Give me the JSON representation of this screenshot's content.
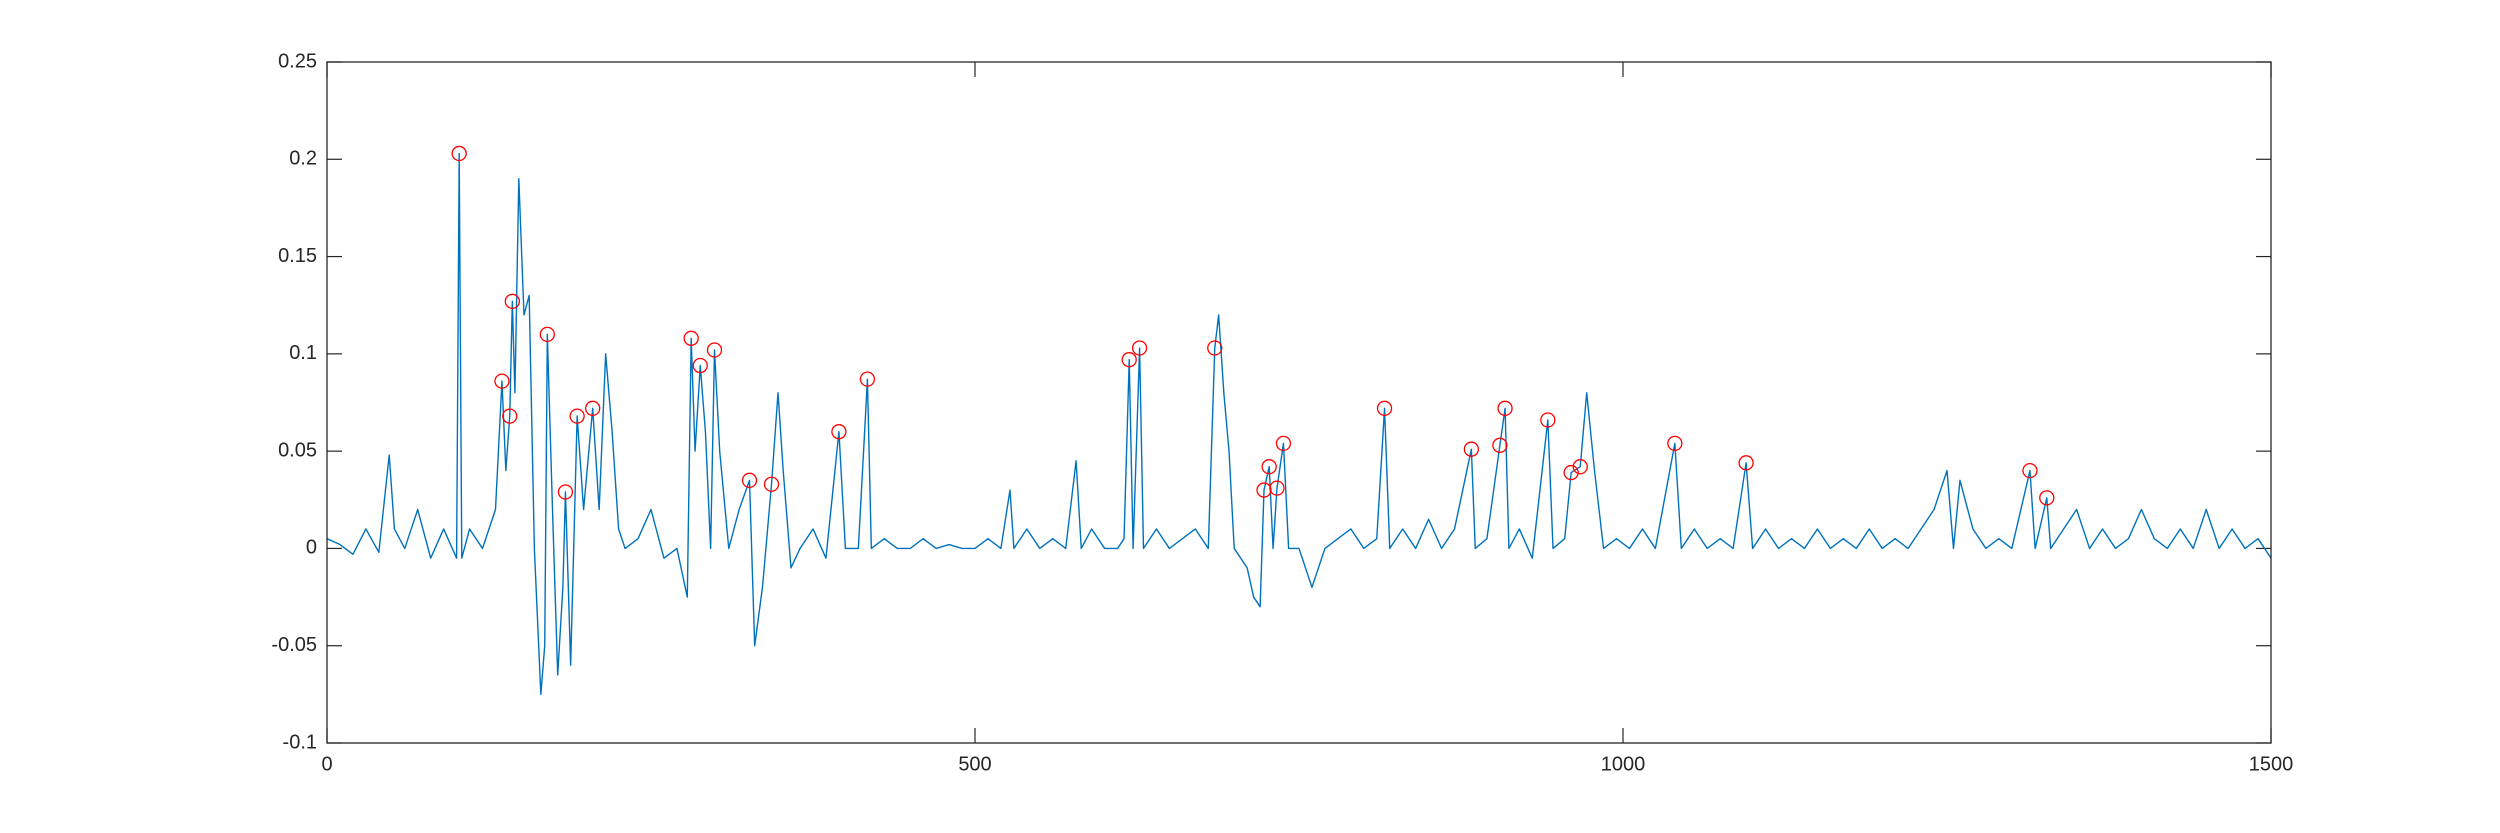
{
  "chart_data": {
    "type": "line",
    "xlim": [
      0,
      1500
    ],
    "xticks": [
      0,
      500,
      1000,
      1500
    ],
    "ylim": [
      -0.1,
      0.25
    ],
    "yticks": [
      -0.1,
      -0.05,
      0,
      0.05,
      0.1,
      0.15,
      0.2,
      0.25
    ],
    "grid": false,
    "series": [
      {
        "type": "line",
        "color": "#0072bd",
        "x": [
          0,
          10,
          20,
          30,
          40,
          48,
          52,
          60,
          70,
          80,
          90,
          100,
          102,
          104,
          110,
          120,
          130,
          135,
          138,
          141,
          143,
          145,
          148,
          152,
          156,
          160,
          165,
          168,
          170,
          174,
          178,
          182,
          184,
          188,
          193,
          198,
          205,
          210,
          215,
          220,
          225,
          230,
          240,
          250,
          260,
          270,
          278,
          281,
          284,
          288,
          292,
          296,
          299,
          303,
          310,
          318,
          326,
          330,
          336,
          343,
          348,
          352,
          358,
          365,
          375,
          385,
          395,
          400,
          410,
          417,
          420,
          430,
          440,
          450,
          460,
          470,
          480,
          490,
          500,
          510,
          520,
          527,
          530,
          540,
          550,
          560,
          570,
          578,
          582,
          590,
          600,
          610,
          615,
          619,
          622,
          627,
          630,
          640,
          650,
          660,
          670,
          680,
          685,
          688,
          692,
          696,
          700,
          710,
          715,
          720,
          723,
          727,
          730,
          733,
          738,
          742,
          750,
          760,
          770,
          780,
          790,
          800,
          810,
          816,
          820,
          830,
          840,
          850,
          860,
          870,
          883,
          886,
          895,
          905,
          909,
          912,
          920,
          930,
          942,
          946,
          955,
          960,
          967,
          972,
          978,
          985,
          995,
          1005,
          1015,
          1025,
          1040,
          1045,
          1055,
          1065,
          1075,
          1085,
          1095,
          1100,
          1110,
          1120,
          1130,
          1140,
          1150,
          1160,
          1170,
          1180,
          1190,
          1200,
          1210,
          1220,
          1230,
          1240,
          1250,
          1255,
          1260,
          1270,
          1280,
          1290,
          1300,
          1314,
          1318,
          1327,
          1330,
          1340,
          1350,
          1360,
          1370,
          1380,
          1390,
          1400,
          1410,
          1420,
          1430,
          1440,
          1450,
          1460,
          1470,
          1480,
          1490,
          1500
        ],
        "values": [
          0.005,
          0.002,
          -0.003,
          0.01,
          -0.002,
          0.048,
          0.01,
          0.0,
          0.02,
          -0.005,
          0.01,
          -0.005,
          0.203,
          -0.005,
          0.01,
          0.0,
          0.02,
          0.086,
          0.04,
          0.068,
          0.127,
          0.08,
          0.19,
          0.12,
          0.13,
          0.0,
          -0.075,
          -0.05,
          0.11,
          0.02,
          -0.065,
          -0.02,
          0.029,
          -0.06,
          0.068,
          0.02,
          0.072,
          0.02,
          0.1,
          0.06,
          0.01,
          0.0,
          0.005,
          0.02,
          -0.005,
          0.0,
          -0.025,
          0.108,
          0.05,
          0.094,
          0.06,
          0.0,
          0.102,
          0.05,
          0.0,
          0.02,
          0.035,
          -0.05,
          -0.02,
          0.033,
          0.08,
          0.04,
          -0.01,
          0.0,
          0.01,
          -0.005,
          0.06,
          0.0,
          0.0,
          0.087,
          0.0,
          0.005,
          0.0,
          0.0,
          0.005,
          0.0,
          0.002,
          0.0,
          0.0,
          0.005,
          0.0,
          0.03,
          0.0,
          0.01,
          0.0,
          0.005,
          0.0,
          0.045,
          0.0,
          0.01,
          0.0,
          0.0,
          0.005,
          0.097,
          0.0,
          0.103,
          0.0,
          0.01,
          0.0,
          0.005,
          0.01,
          0.0,
          0.103,
          0.12,
          0.08,
          0.05,
          0.0,
          -0.01,
          -0.025,
          -0.03,
          0.03,
          0.042,
          0.0,
          0.031,
          0.054,
          0.0,
          0.0,
          -0.02,
          0.0,
          0.005,
          0.01,
          0.0,
          0.005,
          0.072,
          0.0,
          0.01,
          0.0,
          0.015,
          0.0,
          0.01,
          0.051,
          0.0,
          0.005,
          0.053,
          0.072,
          0.0,
          0.01,
          -0.005,
          0.066,
          0.0,
          0.005,
          0.039,
          0.042,
          0.08,
          0.04,
          0.0,
          0.005,
          0.0,
          0.01,
          0.0,
          0.054,
          0.0,
          0.01,
          0.0,
          0.005,
          0.0,
          0.044,
          0.0,
          0.01,
          0.0,
          0.005,
          0.0,
          0.01,
          0.0,
          0.005,
          0.0,
          0.01,
          0.0,
          0.005,
          0.0,
          0.01,
          0.02,
          0.04,
          0.0,
          0.035,
          0.01,
          0.0,
          0.005,
          0.0,
          0.04,
          0.0,
          0.026,
          0.0,
          0.01,
          0.02,
          0.0,
          0.01,
          0.0,
          0.005,
          0.02,
          0.005,
          0.0,
          0.01,
          0.0,
          0.02,
          0.0,
          0.01,
          0.0,
          0.005,
          -0.005
        ]
      },
      {
        "type": "scatter",
        "marker": "circle",
        "color": "#ff0000",
        "x": [
          102,
          135,
          141,
          143,
          170,
          184,
          193,
          205,
          281,
          288,
          299,
          326,
          343,
          395,
          417,
          619,
          627,
          685,
          723,
          727,
          733,
          738,
          816,
          883,
          905,
          909,
          942,
          960,
          967,
          1040,
          1095,
          1314,
          1327
        ],
        "values": [
          0.203,
          0.086,
          0.068,
          0.127,
          0.11,
          0.029,
          0.068,
          0.072,
          0.108,
          0.094,
          0.102,
          0.035,
          0.033,
          0.06,
          0.087,
          0.097,
          0.103,
          0.103,
          0.03,
          0.042,
          0.031,
          0.054,
          0.072,
          0.051,
          0.053,
          0.072,
          0.066,
          0.039,
          0.042,
          0.054,
          0.044,
          0.04,
          0.026
        ]
      }
    ]
  }
}
